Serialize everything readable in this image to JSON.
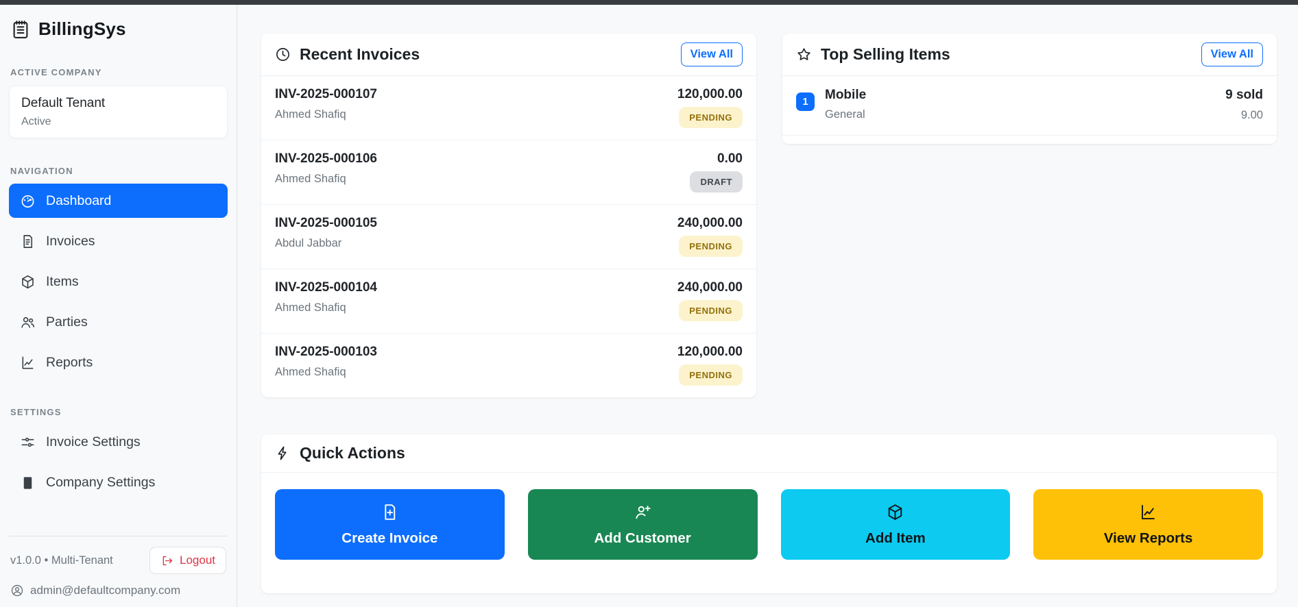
{
  "sidebar": {
    "brand": {
      "label": "BillingSys",
      "icon": "journal-icon"
    },
    "sections": {
      "active_company": "ACTIVE COMPANY",
      "navigation": "NAVIGATION",
      "settings": "SETTINGS"
    },
    "tenant": {
      "name": "Default Tenant",
      "status": "Active"
    },
    "nav": [
      {
        "name": "sidebar-item-dashboard",
        "label": "Dashboard",
        "icon": "speedometer-icon",
        "state": "active"
      },
      {
        "name": "sidebar-item-invoices",
        "label": "Invoices",
        "icon": "file-text-icon",
        "state": "normal"
      },
      {
        "name": "sidebar-item-items",
        "label": "Items",
        "icon": "box-icon",
        "state": "normal"
      },
      {
        "name": "sidebar-item-parties",
        "label": "Parties",
        "icon": "people-icon",
        "state": "normal"
      },
      {
        "name": "sidebar-item-reports",
        "label": "Reports",
        "icon": "graph-icon",
        "state": "normal"
      }
    ],
    "settings_nav": [
      {
        "name": "sidebar-item-invoice-settings",
        "label": "Invoice Settings",
        "icon": "sliders-icon",
        "state": "normal"
      },
      {
        "name": "sidebar-item-company-settings",
        "label": "Company Settings",
        "icon": "building-icon",
        "state": "normal"
      }
    ],
    "footer": {
      "version": "v1.0.0 • Multi-Tenant",
      "logout_label": "Logout",
      "logout_icon": "logout-icon",
      "email": "admin@defaultcompany.com",
      "email_icon": "person-circle-icon"
    }
  },
  "recent_invoices": {
    "title": "Recent Invoices",
    "icon": "clock-icon",
    "view_all_label": "View All",
    "rows": [
      {
        "number": "INV-2025-000107",
        "customer": "Ahmed Shafiq",
        "amount": "120,000.00",
        "status": "PENDING"
      },
      {
        "number": "INV-2025-000106",
        "customer": "Ahmed Shafiq",
        "amount": "0.00",
        "status": "DRAFT"
      },
      {
        "number": "INV-2025-000105",
        "customer": "Abdul Jabbar",
        "amount": "240,000.00",
        "status": "PENDING"
      },
      {
        "number": "INV-2025-000104",
        "customer": "Ahmed Shafiq",
        "amount": "240,000.00",
        "status": "PENDING"
      },
      {
        "number": "INV-2025-000103",
        "customer": "Ahmed Shafiq",
        "amount": "120,000.00",
        "status": "PENDING"
      }
    ]
  },
  "top_selling": {
    "title": "Top Selling Items",
    "icon": "star-icon",
    "view_all_label": "View All",
    "rows": [
      {
        "rank": "1",
        "name": "Mobile",
        "category": "General",
        "sold": "9 sold",
        "amount": "9.00"
      }
    ]
  },
  "quick_actions": {
    "title": "Quick Actions",
    "icon": "lightning-icon",
    "buttons": [
      {
        "name": "create-invoice-button",
        "label": "Create Invoice",
        "icon": "file-plus-icon",
        "bg": "#0d6efd",
        "fg": "#ffffff"
      },
      {
        "name": "add-customer-button",
        "label": "Add Customer",
        "icon": "person-plus-icon",
        "bg": "#198754",
        "fg": "#ffffff"
      },
      {
        "name": "add-item-button",
        "label": "Add Item",
        "icon": "box-icon",
        "bg": "#0dcaf0",
        "fg": "#101418"
      },
      {
        "name": "view-reports-button",
        "label": "View Reports",
        "icon": "graph-icon",
        "bg": "#ffc107",
        "fg": "#101418"
      }
    ]
  },
  "colors": {
    "accent_blue": "#0d6efd",
    "success_green": "#198754",
    "info_cyan": "#0dcaf0",
    "warning_yellow": "#ffc107",
    "danger_red": "#dc3545",
    "badge_pending_bg": "#fcf3cd",
    "badge_pending_text": "#93700a",
    "badge_draft_bg": "#dcdee1",
    "badge_draft_text": "#41464b",
    "page_bg": "#f8f9fa",
    "topbar": "#3a3d40"
  }
}
